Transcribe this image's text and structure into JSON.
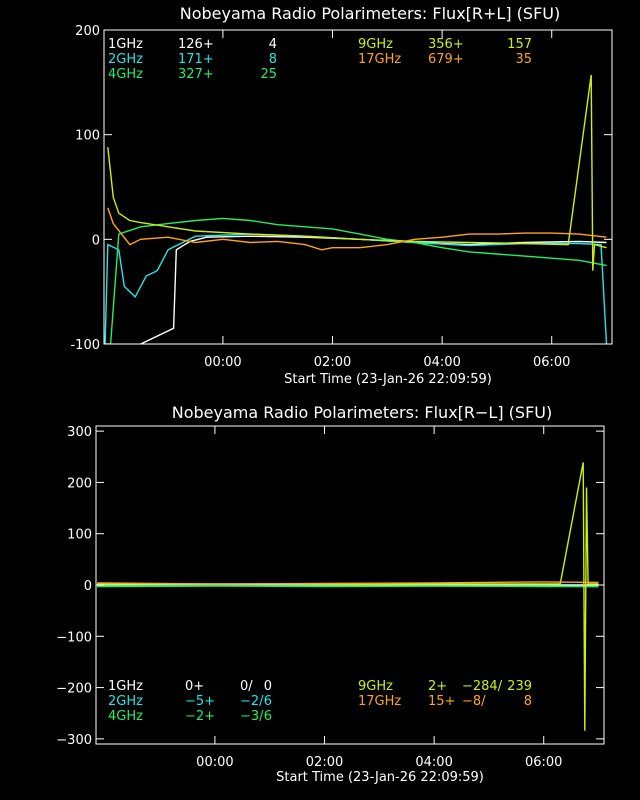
{
  "chart_data": [
    {
      "type": "line",
      "title": "Nobeyama Radio Polarimeters: Flux[R+L] (SFU)",
      "xlabel": "Start Time (23-Jan-26 22:09:59)",
      "ylabel": "",
      "ylim": [
        -100,
        200
      ],
      "yticks": [
        "200",
        "100",
        "0",
        "-100"
      ],
      "xticks": [
        "00:00",
        "02:00",
        "04:00",
        "06:00"
      ],
      "grid": false,
      "legend": {
        "placement": "top",
        "rows": [
          {
            "freq": "1GHz",
            "a": "126+",
            "b": "",
            "c": "4",
            "color": "#ffffff"
          },
          {
            "freq": "2GHz",
            "a": "171+",
            "b": "",
            "c": "8",
            "color": "#22e6e6"
          },
          {
            "freq": "4GHz",
            "a": "327+",
            "b": "",
            "c": "25",
            "color": "#22ee66"
          },
          {
            "freq": "9GHz",
            "a": "356+",
            "b": "",
            "c": "157",
            "color": "#ccee11"
          },
          {
            "freq": "17GHz",
            "a": "679+",
            "b": "",
            "c": "35",
            "color": "#ffa516"
          }
        ]
      },
      "series": [
        {
          "name": "1GHz",
          "color": "#ffffff",
          "x": [
            -1.5,
            -0.9,
            -0.85,
            -0.6,
            -0.3,
            0.5,
            1.5,
            2.5,
            3.5,
            4.5,
            5.5,
            6.5,
            7.0
          ],
          "y": [
            -100,
            -85,
            -10,
            -2,
            2,
            3,
            2,
            0,
            -3,
            -5,
            -3,
            -2,
            -3
          ]
        },
        {
          "name": "2GHz",
          "color": "#22e6e6",
          "x": [
            -2.15,
            -2.1,
            -1.9,
            -1.8,
            -1.6,
            -1.4,
            -1.2,
            -1.0,
            -0.5,
            0.5,
            1.5,
            2.5,
            3.5,
            4.5,
            5.5,
            6.5,
            6.9,
            7.0
          ],
          "y": [
            -100,
            -5,
            -10,
            -45,
            -55,
            -35,
            -30,
            -10,
            3,
            5,
            3,
            0,
            -3,
            -6,
            -4,
            -4,
            -5,
            -100
          ]
        },
        {
          "name": "4GHz",
          "color": "#22ee66",
          "x": [
            -2.15,
            -2.05,
            -1.9,
            -1.5,
            -1.0,
            -0.5,
            0.0,
            0.5,
            1.0,
            1.5,
            2.0,
            2.5,
            3.0,
            3.5,
            4.0,
            4.5,
            5.0,
            5.5,
            6.0,
            6.5,
            7.0
          ],
          "y": [
            -100,
            -100,
            5,
            12,
            15,
            18,
            20,
            18,
            14,
            12,
            10,
            5,
            0,
            -3,
            -8,
            -12,
            -14,
            -16,
            -18,
            -20,
            -25
          ]
        },
        {
          "name": "9GHz",
          "color": "#ccee11",
          "x": [
            -2.1,
            -2.0,
            -1.9,
            -1.7,
            -1.5,
            -1.0,
            -0.5,
            0.5,
            1.5,
            2.5,
            3.5,
            4.5,
            5.5,
            6.3,
            6.72,
            6.75,
            6.78,
            7.0
          ],
          "y": [
            88,
            40,
            25,
            18,
            16,
            12,
            8,
            5,
            3,
            0,
            -2,
            -3,
            -4,
            -5,
            157,
            -30,
            -5,
            -8
          ]
        },
        {
          "name": "17GHz",
          "color": "#ffa516",
          "x": [
            -2.1,
            -2.0,
            -1.7,
            -1.5,
            -1.0,
            -0.5,
            0.0,
            0.5,
            1.0,
            1.5,
            1.8,
            2.0,
            2.5,
            3.0,
            3.5,
            4.0,
            4.5,
            5.0,
            5.5,
            6.0,
            6.5,
            7.0
          ],
          "y": [
            30,
            15,
            -5,
            0,
            2,
            -3,
            0,
            -3,
            -2,
            -5,
            -10,
            -8,
            -8,
            -5,
            0,
            2,
            5,
            5,
            6,
            6,
            5,
            2
          ]
        }
      ]
    },
    {
      "type": "line",
      "title": "Nobeyama Radio Polarimeters: Flux[R−L] (SFU)",
      "xlabel": "Start Time (23-Jan-26 22:09:59)",
      "ylabel": "",
      "ylim": [
        -310,
        310
      ],
      "yticks": [
        "300",
        "200",
        "100",
        "0",
        "−100",
        "−200",
        "−300"
      ],
      "xticks": [
        "00:00",
        "02:00",
        "04:00",
        "06:00"
      ],
      "grid": false,
      "legend": {
        "placement": "bottom",
        "rows": [
          {
            "freq": "1GHz",
            "a": "0+",
            "b": "0/",
            "c": "0",
            "color": "#ffffff"
          },
          {
            "freq": "2GHz",
            "a": "−5+",
            "b": "−2/",
            "c": "6",
            "color": "#22e6e6"
          },
          {
            "freq": "4GHz",
            "a": "−2+",
            "b": "−3/",
            "c": "6",
            "color": "#22ee66"
          },
          {
            "freq": "9GHz",
            "a": "2+",
            "b": "−284/",
            "c": "239",
            "color": "#ccee11"
          },
          {
            "freq": "17GHz",
            "a": "15+",
            "b": "−8/",
            "c": "8",
            "color": "#ffa516"
          }
        ]
      },
      "series": [
        {
          "name": "1GHz",
          "color": "#ffffff",
          "x": [
            -2.15,
            7.0
          ],
          "y": [
            0,
            0
          ]
        },
        {
          "name": "2GHz",
          "color": "#22e6e6",
          "x": [
            -2.15,
            0.0,
            2.0,
            4.0,
            6.0,
            7.0
          ],
          "y": [
            -2,
            -1,
            -2,
            -2,
            -2,
            -3
          ]
        },
        {
          "name": "4GHz",
          "color": "#22ee66",
          "x": [
            -2.15,
            0.0,
            2.0,
            4.0,
            6.0,
            7.0
          ],
          "y": [
            -3,
            -2,
            -3,
            -2,
            -3,
            -3
          ]
        },
        {
          "name": "9GHz",
          "color": "#ccee11",
          "x": [
            -2.15,
            1.0,
            2.5,
            4.0,
            6.3,
            6.72,
            6.75,
            6.78,
            6.81,
            7.0
          ],
          "y": [
            2,
            2,
            1,
            2,
            2,
            239,
            -284,
            190,
            2,
            2
          ]
        },
        {
          "name": "17GHz",
          "color": "#ffa516",
          "x": [
            -2.15,
            0.0,
            2.0,
            4.0,
            6.0,
            7.0
          ],
          "y": [
            4,
            2,
            3,
            4,
            6,
            5
          ]
        }
      ]
    }
  ]
}
